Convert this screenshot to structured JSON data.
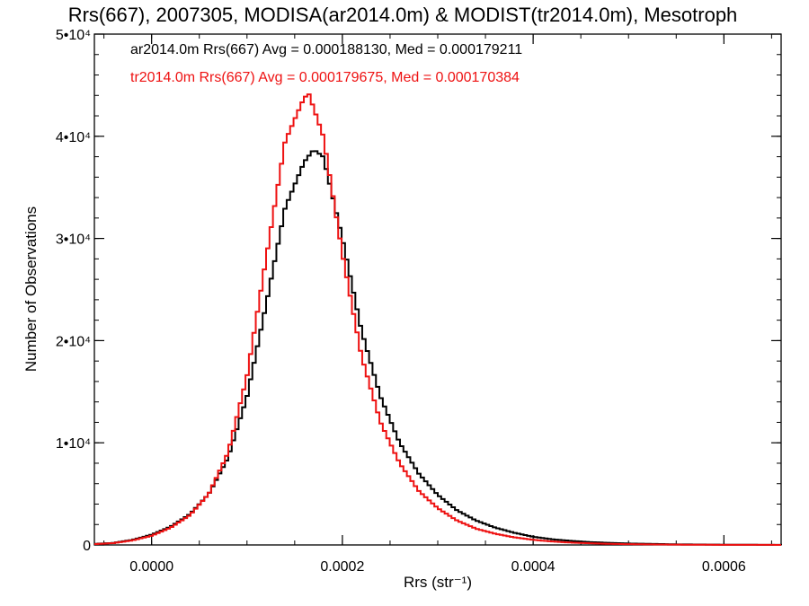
{
  "chart_data": {
    "type": "line",
    "title": "Rrs(667), 2007305, MODISA(ar2014.0m) & MODIST(tr2014.0m), Mesotroph",
    "xlabel": "Rrs (str⁻¹)",
    "ylabel": "Number of Observations",
    "xlim": [
      -6e-05,
      0.00066
    ],
    "ylim": [
      0,
      50000
    ],
    "x_ticks": [
      {
        "value": 0.0,
        "label": "0.0000"
      },
      {
        "value": 0.0002,
        "label": "0.0002"
      },
      {
        "value": 0.0004,
        "label": "0.0004"
      },
      {
        "value": 0.0006,
        "label": "0.0006"
      }
    ],
    "y_ticks": [
      {
        "value": 0,
        "label": "0"
      },
      {
        "value": 10000,
        "label": "1•10⁴"
      },
      {
        "value": 20000,
        "label": "2•10⁴"
      },
      {
        "value": 30000,
        "label": "3•10⁴"
      },
      {
        "value": 40000,
        "label": "4•10⁴"
      },
      {
        "value": 50000,
        "label": "5•10⁴"
      }
    ],
    "series": [
      {
        "name": "ar2014.0m",
        "color": "#000000",
        "annotation": "ar2014.0m Rrs(667) Avg = 0.000188130, Med = 0.000179211",
        "x": [
          -6e-05,
          -4e-05,
          -2e-05,
          0.0,
          2e-05,
          4e-05,
          6e-05,
          8e-05,
          0.0001,
          0.00012,
          0.00014,
          0.00016,
          0.00017,
          0.00018,
          0.0002,
          0.00022,
          0.00024,
          0.00026,
          0.00028,
          0.0003,
          0.00032,
          0.00034,
          0.00036,
          0.00038,
          0.0004,
          0.00042,
          0.00044,
          0.00046,
          0.00048,
          0.0005,
          0.00055,
          0.0006,
          0.00066
        ],
        "y": [
          100,
          200,
          500,
          1000,
          1800,
          3000,
          5000,
          8500,
          14500,
          23500,
          33000,
          37500,
          38700,
          38000,
          30000,
          21000,
          14500,
          10000,
          7000,
          4900,
          3400,
          2400,
          1700,
          1200,
          800,
          550,
          400,
          280,
          200,
          140,
          60,
          25,
          10
        ]
      },
      {
        "name": "tr2014.0m",
        "color": "#ee1111",
        "annotation": "tr2014.0m Rrs(667) Avg = 0.000179675, Med = 0.000170384",
        "x": [
          -6e-05,
          -4e-05,
          -2e-05,
          0.0,
          2e-05,
          4e-05,
          6e-05,
          8e-05,
          0.0001,
          0.00012,
          0.00014,
          0.00016,
          0.000165,
          0.00018,
          0.0002,
          0.00022,
          0.00024,
          0.00026,
          0.00028,
          0.0003,
          0.00032,
          0.00034,
          0.00036,
          0.00038,
          0.0004,
          0.00042,
          0.00044,
          0.00046,
          0.00048,
          0.0005,
          0.00055,
          0.0006,
          0.00066
        ],
        "y": [
          80,
          180,
          450,
          900,
          1700,
          2900,
          5000,
          9000,
          16500,
          28000,
          39500,
          43800,
          44100,
          40000,
          28500,
          18500,
          12000,
          8000,
          5300,
          3600,
          2400,
          1600,
          1100,
          750,
          500,
          340,
          230,
          160,
          110,
          75,
          30,
          12,
          5
        ]
      }
    ]
  }
}
